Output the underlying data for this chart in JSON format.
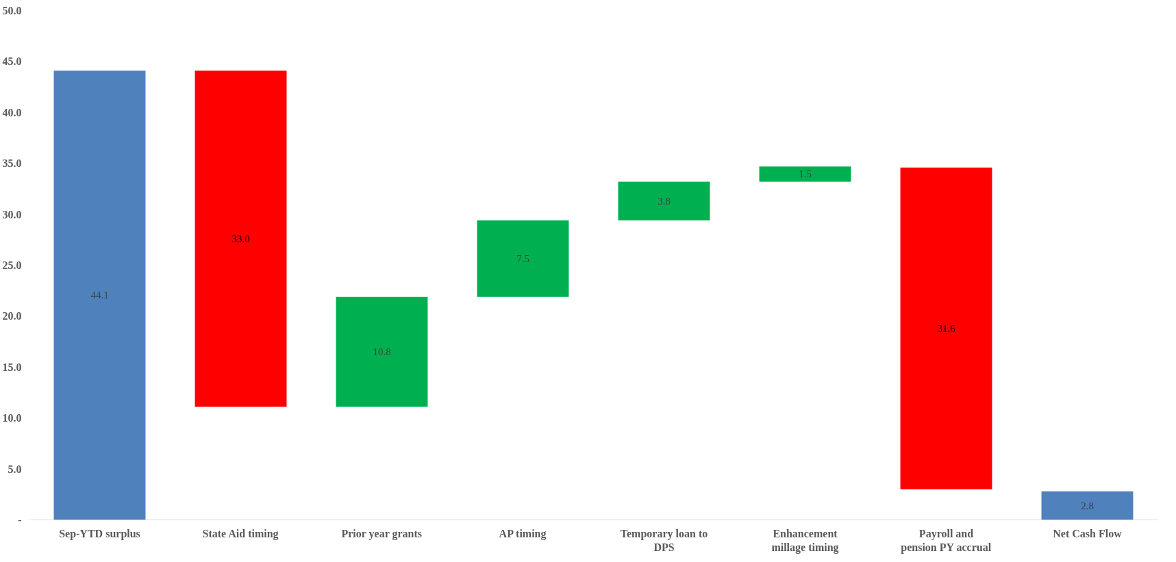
{
  "chart_data": {
    "type": "bar",
    "categories": [
      "Sep-YTD surplus",
      "State Aid timing",
      "Prior year grants",
      "AP timing",
      "Temporary loan to DPS",
      "Enhancement millage timing",
      "Payroll and pension PY accrual",
      "Net Cash Flow"
    ],
    "values": [
      44.1,
      33.0,
      10.8,
      7.5,
      3.8,
      1.5,
      31.6,
      2.8
    ],
    "base": [
      0,
      11.1,
      11.1,
      21.9,
      29.4,
      33.2,
      3.0,
      0
    ],
    "colors": [
      "#4f81bd",
      "#ff0000",
      "#00b050",
      "#00b050",
      "#00b050",
      "#00b050",
      "#ff0000",
      "#4f81bd"
    ],
    "value_labels": [
      "44.1",
      "33.0",
      "10.8",
      "7.5",
      "3.8",
      "1.5",
      "31.6",
      "2.8"
    ],
    "ylim": [
      0,
      50
    ],
    "yticks": [
      {
        "value": 0,
        "label": "-"
      },
      {
        "value": 5,
        "label": "5.0"
      },
      {
        "value": 10,
        "label": "10.0"
      },
      {
        "value": 15,
        "label": "15.0"
      },
      {
        "value": 20,
        "label": "20.0"
      },
      {
        "value": 25,
        "label": "25.0"
      },
      {
        "value": 30,
        "label": "30.0"
      },
      {
        "value": 35,
        "label": "35.0"
      },
      {
        "value": 40,
        "label": "40.0"
      },
      {
        "value": 45,
        "label": "45.0"
      },
      {
        "value": 50,
        "label": "50.0"
      }
    ],
    "grid": false
  }
}
